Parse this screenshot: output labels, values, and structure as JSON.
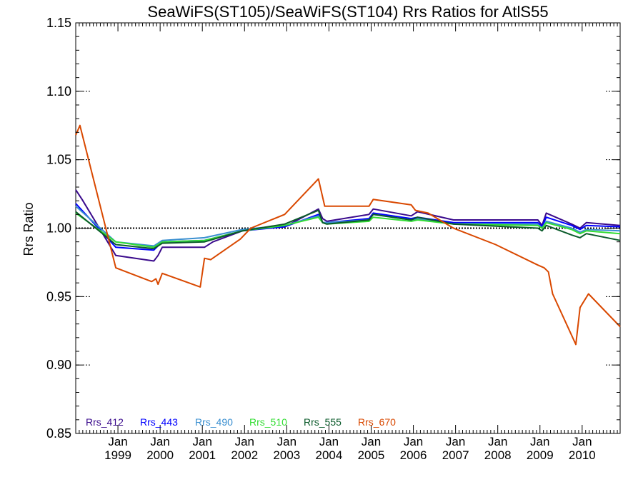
{
  "chart_data": {
    "type": "line",
    "title": "SeaWiFS(ST105)/SeaWiFS(ST104)  Rrs Ratios for AtlS55",
    "xlabel": "",
    "ylabel": "Rrs Ratio",
    "xlim": [
      1998.0,
      2010.9
    ],
    "ylim": [
      0.85,
      1.15
    ],
    "yticks": [
      0.85,
      0.9,
      0.95,
      1.0,
      1.05,
      1.1,
      1.15
    ],
    "ytick_labels": [
      "0.85",
      "0.90",
      "0.95",
      "1.00",
      "1.05",
      "1.10",
      "1.15"
    ],
    "xticks": [
      {
        "value": 1999.0,
        "line1": "Jan",
        "line2": "1999"
      },
      {
        "value": 2000.0,
        "line1": "Jan",
        "line2": "2000"
      },
      {
        "value": 2001.0,
        "line1": "Jan",
        "line2": "2001"
      },
      {
        "value": 2002.0,
        "line1": "Jan",
        "line2": "2002"
      },
      {
        "value": 2003.0,
        "line1": "Jan",
        "line2": "2003"
      },
      {
        "value": 2004.0,
        "line1": "Jan",
        "line2": "2004"
      },
      {
        "value": 2005.0,
        "line1": "Jan",
        "line2": "2005"
      },
      {
        "value": 2006.0,
        "line1": "Jan",
        "line2": "2006"
      },
      {
        "value": 2007.0,
        "line1": "Jan",
        "line2": "2007"
      },
      {
        "value": 2008.0,
        "line1": "Jan",
        "line2": "2008"
      },
      {
        "value": 2009.0,
        "line1": "Jan",
        "line2": "2009"
      },
      {
        "value": 2010.0,
        "line1": "Jan",
        "line2": "2010"
      }
    ],
    "reference_line": 1.0,
    "legend_position": "bottom-left",
    "series": [
      {
        "name": "Rrs_412",
        "color": "#3a0a8c",
        "x": [
          1998.0,
          1998.15,
          1998.95,
          1999.85,
          1999.95,
          2000.05,
          2001.05,
          2001.25,
          2001.95,
          2002.05,
          2002.95,
          2003.75,
          2003.85,
          2003.95,
          2004.95,
          2005.05,
          2005.95,
          2006.1,
          2006.95,
          2008.95,
          2009.05,
          2009.15,
          2009.75,
          2009.95,
          2010.1,
          2010.9
        ],
        "y": [
          1.028,
          1.021,
          0.98,
          0.976,
          0.98,
          0.986,
          0.986,
          0.99,
          0.998,
          0.999,
          1.001,
          1.014,
          1.007,
          1.005,
          1.01,
          1.014,
          1.009,
          1.012,
          1.006,
          1.006,
          1.002,
          1.011,
          1.003,
          1.0,
          1.004,
          1.002
        ]
      },
      {
        "name": "Rrs_443",
        "color": "#0000ff",
        "x": [
          1998.0,
          1998.95,
          1999.85,
          2000.05,
          2001.05,
          2001.95,
          2002.95,
          2003.75,
          2003.85,
          2003.95,
          2004.95,
          2005.05,
          2005.95,
          2006.1,
          2006.95,
          2008.95,
          2009.05,
          2009.15,
          2009.75,
          2009.95,
          2010.1,
          2010.9
        ],
        "y": [
          1.018,
          0.986,
          0.984,
          0.99,
          0.991,
          0.998,
          1.001,
          1.01,
          1.004,
          1.004,
          1.007,
          1.011,
          1.007,
          1.008,
          1.004,
          1.004,
          1.001,
          1.008,
          1.002,
          0.999,
          1.002,
          1.001
        ]
      },
      {
        "name": "Rrs_490",
        "color": "#3a8fd0",
        "x": [
          1998.0,
          1998.95,
          1999.85,
          2000.05,
          2001.05,
          2001.95,
          2002.95,
          2003.75,
          2003.85,
          2003.95,
          2004.95,
          2005.05,
          2005.95,
          2006.1,
          2006.95,
          2008.95,
          2009.05,
          2009.15,
          2009.75,
          2009.95,
          2010.1,
          2010.9
        ],
        "y": [
          1.016,
          0.99,
          0.987,
          0.991,
          0.993,
          0.999,
          1.002,
          1.009,
          1.004,
          1.004,
          1.006,
          1.01,
          1.006,
          1.007,
          1.003,
          1.003,
          1.0,
          1.005,
          1.0,
          0.997,
          0.999,
          0.998
        ]
      },
      {
        "name": "Rrs_510",
        "color": "#33dd33",
        "x": [
          1998.0,
          1998.95,
          1999.85,
          2000.05,
          2001.05,
          2001.95,
          2002.95,
          2003.75,
          2003.85,
          2003.95,
          2004.95,
          2005.05,
          2005.95,
          2006.1,
          2006.95,
          2008.95,
          2009.05,
          2009.15,
          2009.75,
          2009.95,
          2010.1,
          2010.9
        ],
        "y": [
          1.011,
          0.99,
          0.986,
          0.99,
          0.991,
          0.998,
          1.002,
          1.008,
          1.004,
          1.003,
          1.005,
          1.008,
          1.005,
          1.006,
          1.003,
          1.002,
          1.0,
          1.004,
          0.999,
          0.996,
          0.998,
          0.996
        ]
      },
      {
        "name": "Rrs_555",
        "color": "#0a5a2a",
        "x": [
          1998.0,
          1998.95,
          1999.85,
          2000.05,
          2001.05,
          2001.95,
          2002.95,
          2003.75,
          2003.85,
          2003.95,
          2004.95,
          2005.05,
          2005.95,
          2006.1,
          2006.95,
          2008.95,
          2009.05,
          2009.15,
          2009.75,
          2009.95,
          2010.1,
          2010.9
        ],
        "y": [
          1.012,
          0.988,
          0.985,
          0.989,
          0.99,
          0.998,
          1.003,
          1.013,
          1.004,
          1.003,
          1.006,
          1.01,
          1.006,
          1.008,
          1.003,
          1.0,
          0.998,
          1.002,
          0.995,
          0.993,
          0.996,
          0.991
        ]
      },
      {
        "name": "Rrs_670",
        "color": "#d94800",
        "x": [
          1998.0,
          1998.1,
          1998.95,
          1999.8,
          1999.9,
          1999.95,
          2000.05,
          2000.95,
          2001.05,
          2001.2,
          2001.9,
          2002.15,
          2002.95,
          2003.75,
          2003.9,
          2004.95,
          2005.05,
          2005.95,
          2006.05,
          2006.35,
          2006.95,
          2007.95,
          2008.95,
          2009.1,
          2009.2,
          2009.3,
          2009.85,
          2009.95,
          2010.15,
          2010.9
        ],
        "y": [
          1.068,
          1.075,
          0.971,
          0.961,
          0.963,
          0.959,
          0.967,
          0.957,
          0.978,
          0.977,
          0.992,
          1.0,
          1.01,
          1.036,
          1.016,
          1.016,
          1.021,
          1.017,
          1.013,
          1.011,
          1.0,
          0.988,
          0.973,
          0.971,
          0.968,
          0.952,
          0.915,
          0.942,
          0.952,
          0.928
        ]
      }
    ]
  }
}
